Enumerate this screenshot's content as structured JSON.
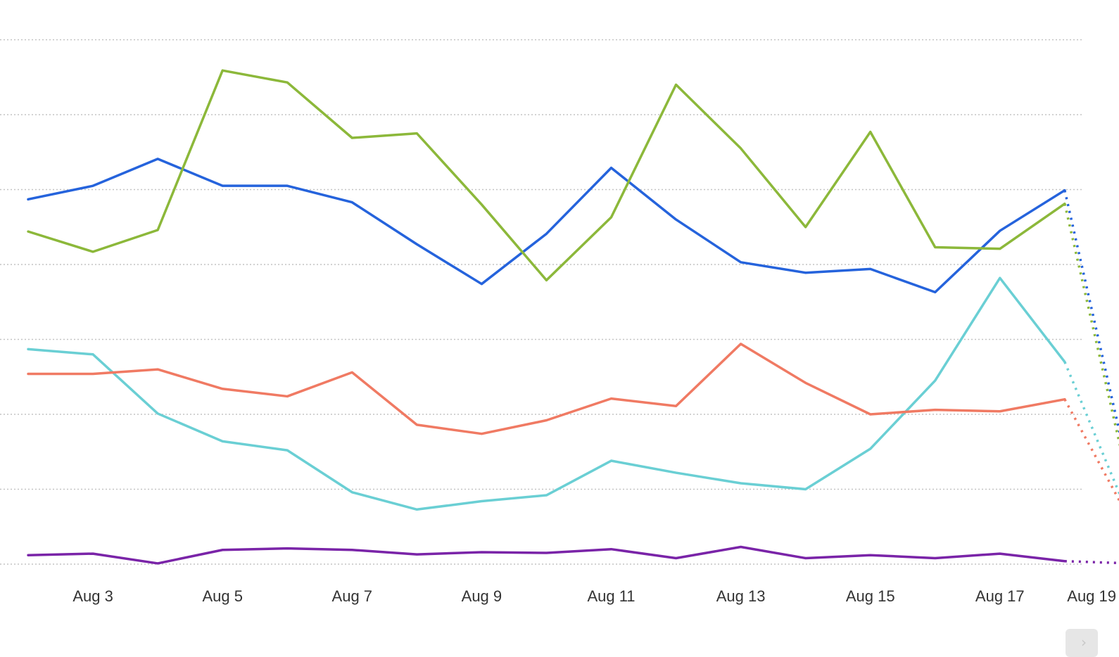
{
  "chart_data": {
    "type": "line",
    "x": [
      "2024-08-02",
      "2024-08-03",
      "2024-08-04",
      "2024-08-05",
      "2024-08-06",
      "2024-08-07",
      "2024-08-08",
      "2024-08-09",
      "2024-08-10",
      "2024-08-11",
      "2024-08-12",
      "2024-08-13",
      "2024-08-14",
      "2024-08-15",
      "2024-08-16",
      "2024-08-17",
      "2024-08-18",
      "2024-08-19"
    ],
    "tick_labels": [
      "Aug 3",
      "Aug 5",
      "Aug 7",
      "Aug 9",
      "Aug 11",
      "Aug 13",
      "Aug 15",
      "Aug 17",
      "Aug 19"
    ],
    "tick_dates": [
      "2024-08-03",
      "2024-08-05",
      "2024-08-07",
      "2024-08-09",
      "2024-08-11",
      "2024-08-13",
      "2024-08-15",
      "2024-08-17",
      "2024-08-19"
    ],
    "ylim": [
      0,
      7
    ],
    "y_gridlines": [
      0,
      1,
      2,
      3,
      4,
      5,
      6,
      7
    ],
    "grid": true,
    "incomplete_last_period": true,
    "series": [
      {
        "color": "#2563dc",
        "values": [
          4.87,
          5.05,
          5.41,
          5.05,
          5.05,
          4.83,
          4.27,
          3.74,
          4.41,
          5.29,
          4.6,
          4.03,
          3.89,
          3.94,
          3.63,
          4.45,
          4.99,
          1.18
        ]
      },
      {
        "color": "#8cb83a",
        "values": [
          4.44,
          4.17,
          4.46,
          6.59,
          6.43,
          5.69,
          5.75,
          4.8,
          3.79,
          4.63,
          6.4,
          5.55,
          4.5,
          5.77,
          4.23,
          4.21,
          4.81,
          1.03
        ]
      },
      {
        "color": "#6acfd4",
        "values": [
          2.87,
          2.8,
          2.01,
          1.64,
          1.52,
          0.96,
          0.73,
          0.84,
          0.92,
          1.38,
          1.22,
          1.08,
          1.0,
          1.54,
          2.45,
          3.82,
          2.7,
          0.62
        ]
      },
      {
        "color": "#f07a63",
        "values": [
          2.54,
          2.54,
          2.6,
          2.34,
          2.24,
          2.56,
          1.86,
          1.74,
          1.92,
          2.21,
          2.11,
          2.94,
          2.42,
          2.0,
          2.06,
          2.04,
          2.2,
          0.6
        ]
      },
      {
        "color": "#7a24a8",
        "values": [
          0.12,
          0.14,
          0.01,
          0.19,
          0.21,
          0.19,
          0.13,
          0.16,
          0.15,
          0.2,
          0.08,
          0.23,
          0.08,
          0.12,
          0.08,
          0.14,
          0.04,
          0.01
        ]
      }
    ]
  },
  "ui": {
    "scroll_arrow": "›"
  }
}
